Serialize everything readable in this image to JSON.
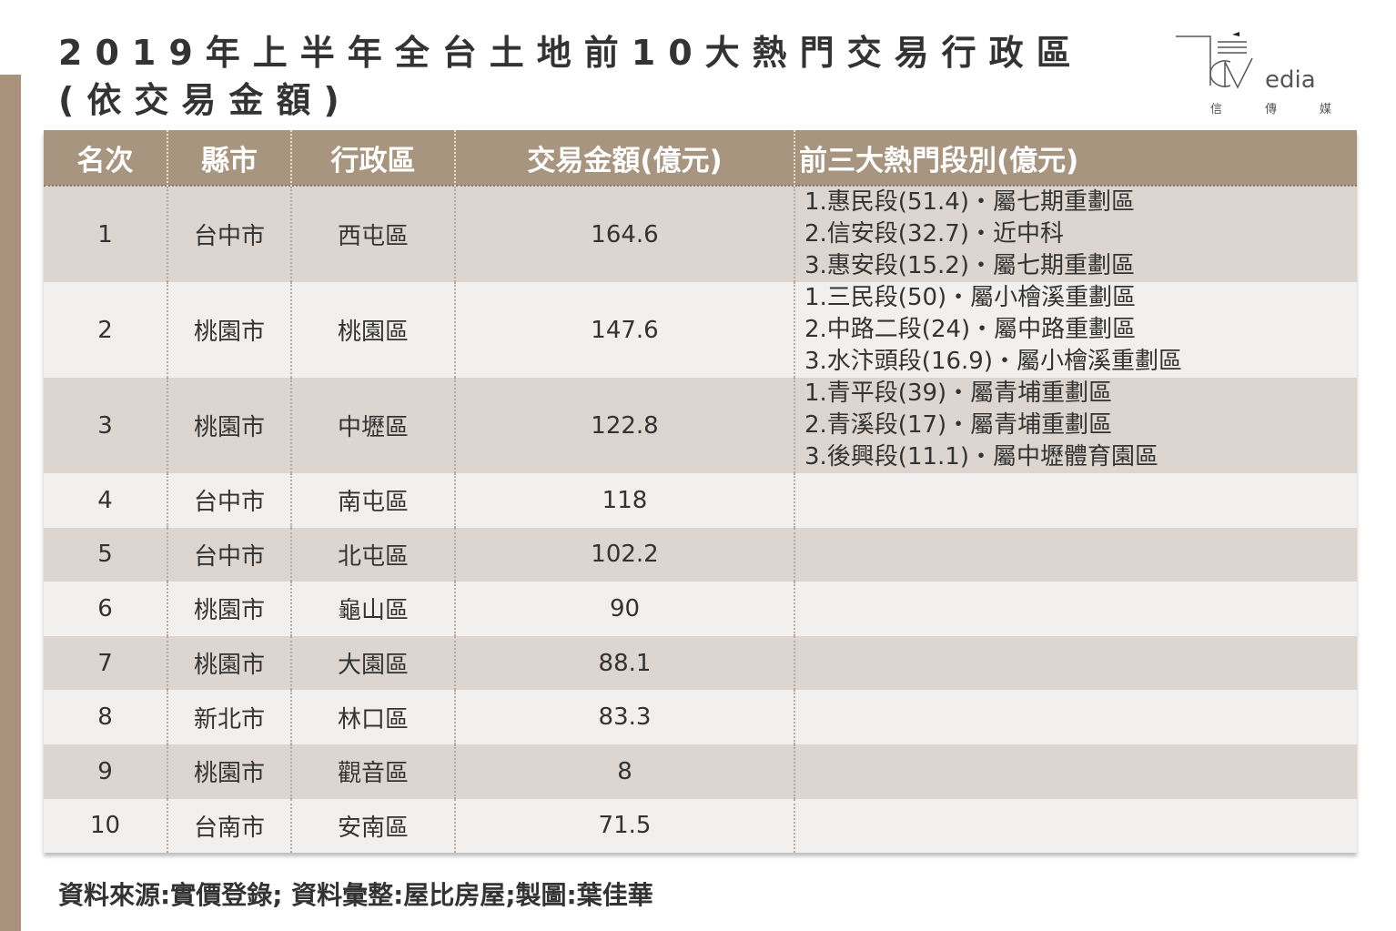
{
  "title": {
    "line1": "2019年上半年全台土地前10大熱門交易行政區",
    "line2": "(依交易金額)"
  },
  "logo": {
    "text": "CMedia",
    "chinese": "信傳媒"
  },
  "table": {
    "headers": [
      "名次",
      "縣市",
      "行政區",
      "交易金額(億元)",
      "前三大熱門段別(億元)"
    ],
    "rows": [
      {
        "rank": "1",
        "city": "台中市",
        "district": "西屯區",
        "amount": "164.6",
        "top3": [
          "1.惠民段(51.4)・屬七期重劃區",
          "2.信安段(32.7)・近中科",
          "3.惠安段(15.2)・屬七期重劃區"
        ]
      },
      {
        "rank": "2",
        "city": "桃園市",
        "district": "桃園區",
        "amount": "147.6",
        "top3": [
          "1.三民段(50)・屬小檜溪重劃區",
          "2.中路二段(24)・屬中路重劃區",
          "3.水汴頭段(16.9)・屬小檜溪重劃區"
        ]
      },
      {
        "rank": "3",
        "city": "桃園市",
        "district": "中壢區",
        "amount": "122.8",
        "top3": [
          "1.青平段(39)・屬青埔重劃區",
          "2.青溪段(17)・屬青埔重劃區",
          "3.後興段(11.1)・屬中壢體育園區"
        ]
      },
      {
        "rank": "4",
        "city": "台中市",
        "district": "南屯區",
        "amount": "118"
      },
      {
        "rank": "5",
        "city": "台中市",
        "district": "北屯區",
        "amount": "102.2"
      },
      {
        "rank": "6",
        "city": "桃園市",
        "district": "龜山區",
        "amount": "90"
      },
      {
        "rank": "7",
        "city": "桃園市",
        "district": "大園區",
        "amount": "88.1"
      },
      {
        "rank": "8",
        "city": "新北市",
        "district": "林口區",
        "amount": "83.3"
      },
      {
        "rank": "9",
        "city": "桃園市",
        "district": "觀音區",
        "amount": "8"
      },
      {
        "rank": "10",
        "city": "台南市",
        "district": "安南區",
        "amount": "71.5"
      }
    ]
  },
  "footer": "資料來源:實價登錄; 資料彙整:屋比房屋;製圖:葉佳華",
  "colors": {
    "header": "#a8957f",
    "row_dark": "#ddd5cf",
    "row_light": "#f2f0ee",
    "sidebar": "#a8927c"
  }
}
